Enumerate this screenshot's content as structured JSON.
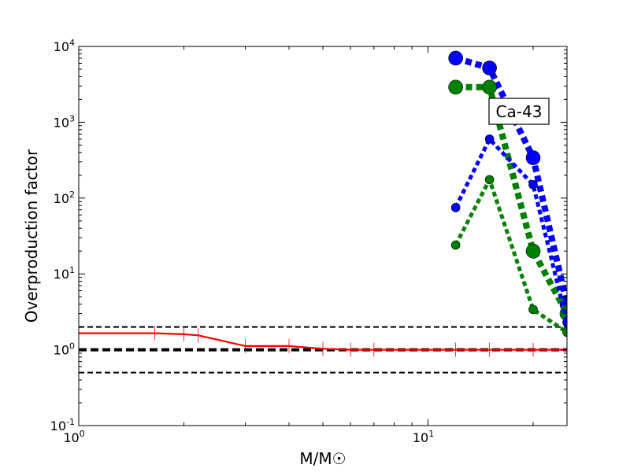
{
  "chart_data": {
    "type": "line",
    "xscale": "log",
    "yscale": "log",
    "xlim": [
      1,
      25
    ],
    "ylim": [
      0.1,
      10000
    ],
    "xlabel": "M/M☉",
    "ylabel": "Overproduction factor",
    "x_ticks": [
      {
        "value": 1,
        "base": "10",
        "exp": "0"
      },
      {
        "value": 10,
        "base": "10",
        "exp": "1"
      }
    ],
    "y_ticks": [
      {
        "value": 0.1,
        "base": "10",
        "exp": "-1"
      },
      {
        "value": 1,
        "base": "10",
        "exp": "0"
      },
      {
        "value": 10,
        "base": "10",
        "exp": "1"
      },
      {
        "value": 100,
        "base": "10",
        "exp": "2"
      },
      {
        "value": 1000,
        "base": "10",
        "exp": "3"
      },
      {
        "value": 10000,
        "base": "10",
        "exp": "4"
      }
    ],
    "annotation": "Ca-43",
    "reference_lines": [
      {
        "y": 2.0,
        "style": "dashed",
        "color": "#000000",
        "weight": "thin"
      },
      {
        "y": 1.0,
        "style": "dashed",
        "color": "#000000",
        "weight": "thick"
      },
      {
        "y": 0.5,
        "style": "dashed",
        "color": "#000000",
        "weight": "thin"
      }
    ],
    "series": [
      {
        "color": "#ff0000",
        "style": "solid",
        "marker": "tick",
        "width": "thin",
        "x": [
          1.0,
          1.65,
          2.0,
          2.2,
          3.0,
          4.0,
          5.0,
          6.0,
          7.0,
          12.0,
          15.0,
          20.0,
          25.0
        ],
        "y": [
          1.65,
          1.65,
          1.6,
          1.55,
          1.12,
          1.12,
          1.03,
          1.0,
          1.0,
          1.0,
          1.0,
          1.0,
          1.0
        ]
      },
      {
        "color": "#0000ff",
        "style": "dotted",
        "marker": "circle",
        "width": "thick",
        "marker_size": "large",
        "x": [
          12.0,
          15.0,
          20.0,
          25.0
        ],
        "y": [
          7000,
          5200,
          340,
          4.0
        ]
      },
      {
        "color": "#008000",
        "style": "dotted",
        "marker": "circle",
        "width": "thick",
        "marker_size": "large",
        "x": [
          12.0,
          15.0,
          20.0,
          25.0
        ],
        "y": [
          2900,
          2900,
          20,
          3.0
        ]
      },
      {
        "color": "#0000ff",
        "style": "dotted",
        "marker": "circle",
        "width": "medium",
        "marker_size": "small",
        "x": [
          12.0,
          15.0,
          20.0,
          25.0
        ],
        "y": [
          75,
          600,
          150,
          2.3
        ]
      },
      {
        "color": "#008000",
        "style": "dotted",
        "marker": "circle",
        "width": "medium",
        "marker_size": "small",
        "x": [
          12.0,
          15.0,
          20.0,
          25.0
        ],
        "y": [
          24,
          175,
          3.4,
          1.7
        ]
      }
    ]
  }
}
